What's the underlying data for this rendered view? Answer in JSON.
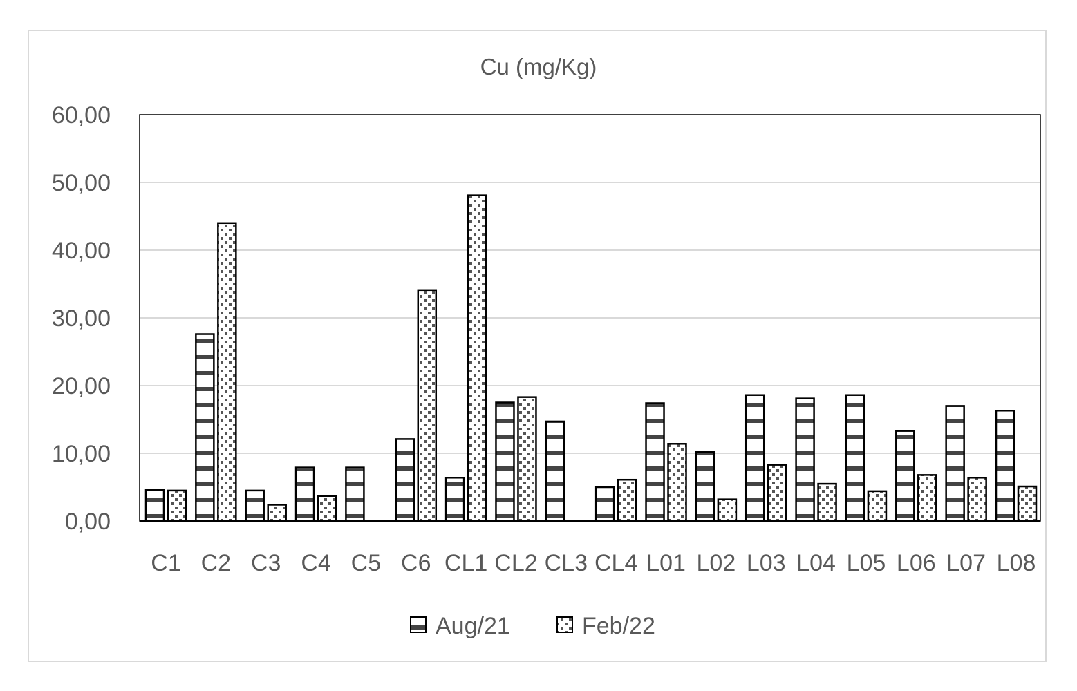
{
  "chart_data": {
    "type": "bar",
    "title": "Cu (mg/Kg)",
    "xlabel": "",
    "ylabel": "",
    "ylim": [
      0,
      60
    ],
    "yticks": [
      0,
      10,
      20,
      30,
      40,
      50,
      60
    ],
    "ytick_labels": [
      "0,00",
      "10,00",
      "20,00",
      "30,00",
      "40,00",
      "50,00",
      "60,00"
    ],
    "grid": true,
    "legend_position": "bottom",
    "categories": [
      "C1",
      "C2",
      "C3",
      "C4",
      "C5",
      "C6",
      "CL1",
      "CL2",
      "CL3",
      "CL4",
      "L01",
      "L02",
      "L03",
      "L04",
      "L05",
      "L06",
      "L07",
      "L08"
    ],
    "series": [
      {
        "name": "Aug/21",
        "pattern": "horizontal-stripes",
        "values": [
          4.6,
          27.6,
          4.5,
          7.9,
          7.9,
          12.1,
          6.4,
          17.5,
          14.7,
          5.0,
          17.4,
          10.2,
          18.6,
          18.1,
          18.6,
          13.3,
          17.0,
          16.3
        ]
      },
      {
        "name": "Feb/22",
        "pattern": "diagonal-checker",
        "values": [
          4.5,
          44.0,
          2.4,
          3.7,
          null,
          34.1,
          48.1,
          18.3,
          null,
          6.1,
          11.4,
          3.2,
          8.3,
          5.5,
          4.4,
          6.8,
          6.4,
          5.1
        ]
      }
    ],
    "colors": {
      "grid": "#d9d9d9",
      "bar_stroke": "#000000",
      "text": "#595959",
      "pattern": "#444444"
    }
  }
}
